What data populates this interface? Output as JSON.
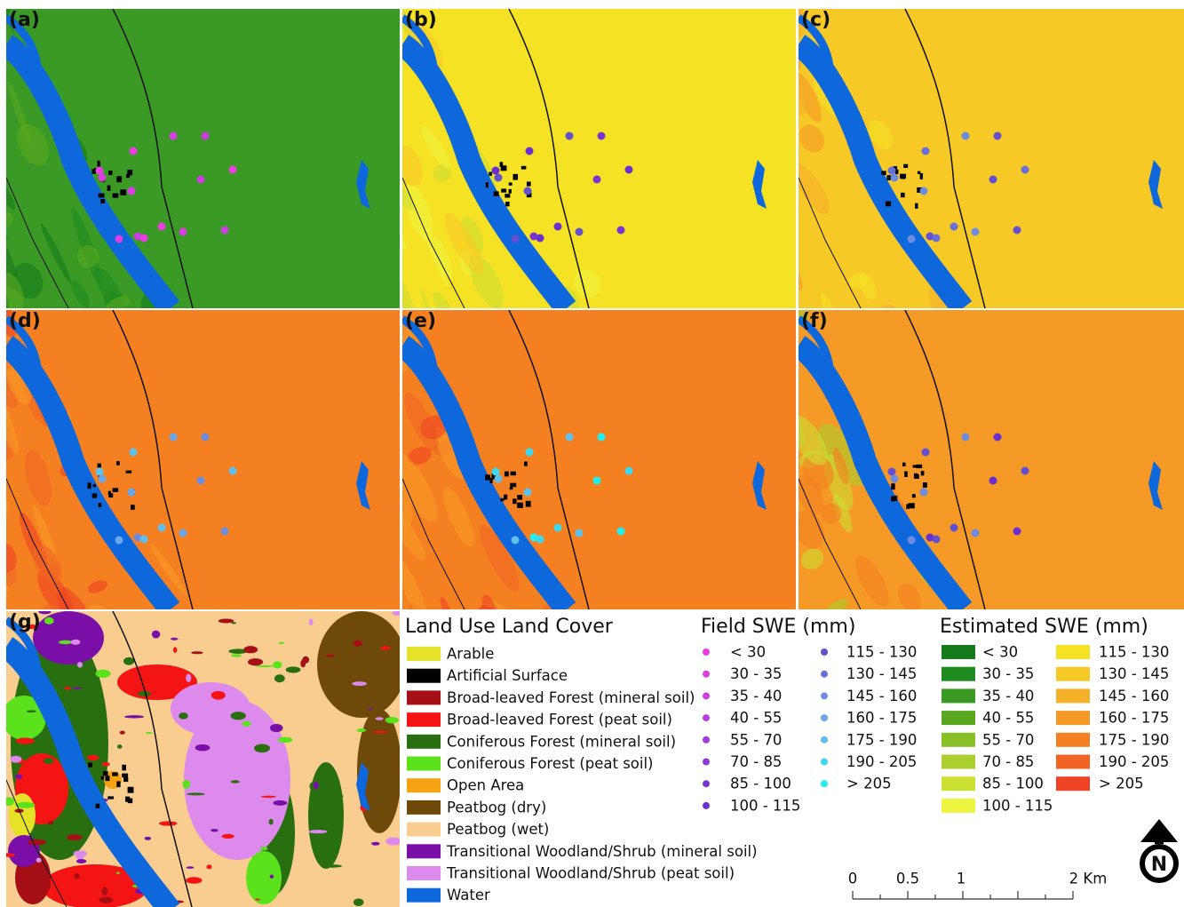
{
  "panels": [
    "(a)",
    "(b)",
    "(c)",
    "(d)",
    "(e)",
    "(f)",
    "(g)"
  ],
  "land_use": {
    "title": "Land Use Land Cover",
    "items": [
      {
        "label": "Arable",
        "color": "#e6e22a"
      },
      {
        "label": "Artificial Surface",
        "color": "#000000"
      },
      {
        "label": "Broad-leaved Forest (mineral soil)",
        "color": "#a50f15"
      },
      {
        "label": "Broad-leaved Forest (peat soil)",
        "color": "#f51414"
      },
      {
        "label": "Coniferous Forest (mineral soil)",
        "color": "#2a6e12"
      },
      {
        "label": "Coniferous Forest (peat soil)",
        "color": "#5ce21c"
      },
      {
        "label": "Open Area",
        "color": "#f5a213"
      },
      {
        "label": "Peatbog (dry)",
        "color": "#6e4a0a"
      },
      {
        "label": "Peatbog (wet)",
        "color": "#f8cd8f"
      },
      {
        "label": "Transitional Woodland/Shrub (mineral soil)",
        "color": "#7a0fa8"
      },
      {
        "label": "Transitional Woodland/Shrub (peat soil)",
        "color": "#dc8aec"
      },
      {
        "label": "Water",
        "color": "#0f67dc"
      }
    ]
  },
  "field_swe": {
    "title": "Field SWE (mm)",
    "items": [
      {
        "label": "< 30",
        "color": "#ea3ee2"
      },
      {
        "label": "30 - 35",
        "color": "#dc3ee3"
      },
      {
        "label": "35 - 40",
        "color": "#cb3fe1"
      },
      {
        "label": "40 - 55",
        "color": "#b93fdf"
      },
      {
        "label": "55 - 70",
        "color": "#a23ddb"
      },
      {
        "label": "70 - 85",
        "color": "#8c39d6"
      },
      {
        "label": "85 - 100",
        "color": "#7a34d2"
      },
      {
        "label": "100 - 115",
        "color": "#6a30cf"
      },
      {
        "label": "115 - 130",
        "color": "#6250d0"
      },
      {
        "label": "130 - 145",
        "color": "#6a6fd6"
      },
      {
        "label": "145 - 160",
        "color": "#6d8ce0"
      },
      {
        "label": "160 - 175",
        "color": "#6aa6e8"
      },
      {
        "label": "175 - 190",
        "color": "#5fc0ee"
      },
      {
        "label": "190 - 205",
        "color": "#3fd7f0"
      },
      {
        "label": "> 205",
        "color": "#22eef0"
      }
    ]
  },
  "estimated_swe": {
    "title": "Estimated SWE (mm)",
    "items": [
      {
        "label": "< 30",
        "color": "#157a1a"
      },
      {
        "label": "30 - 35",
        "color": "#1e8a1f"
      },
      {
        "label": "35 - 40",
        "color": "#3a9a25"
      },
      {
        "label": "40 - 55",
        "color": "#5aa822"
      },
      {
        "label": "55 - 70",
        "color": "#88c028"
      },
      {
        "label": "70 - 85",
        "color": "#aacf2e"
      },
      {
        "label": "85 - 100",
        "color": "#cce034"
      },
      {
        "label": "100 - 115",
        "color": "#eef540"
      },
      {
        "label": "115 - 130",
        "color": "#f5e224"
      },
      {
        "label": "130 - 145",
        "color": "#f6c927"
      },
      {
        "label": "145 - 160",
        "color": "#f6b12a"
      },
      {
        "label": "160 - 175",
        "color": "#f69a27"
      },
      {
        "label": "175 - 190",
        "color": "#f48022"
      },
      {
        "label": "190 - 205",
        "color": "#f06525"
      },
      {
        "label": "> 205",
        "color": "#ee4324"
      }
    ]
  },
  "scale_bar": {
    "labels": [
      "0",
      "0.5",
      "1",
      "2 Km"
    ]
  },
  "north": "N"
}
